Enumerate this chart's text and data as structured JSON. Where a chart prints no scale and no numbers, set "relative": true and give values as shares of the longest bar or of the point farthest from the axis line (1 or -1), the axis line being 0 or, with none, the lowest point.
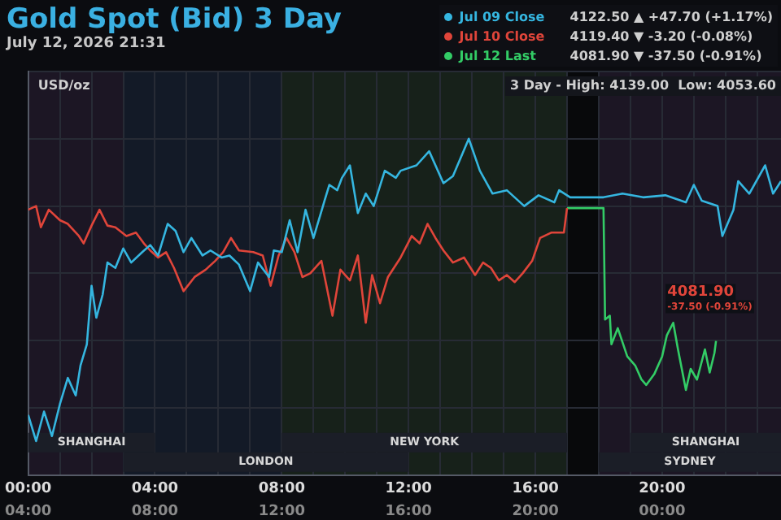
{
  "chart_data": {
    "type": "line",
    "title": "Gold Spot (Bid) 3 Day",
    "subtitle": "July 12, 2026 21:31",
    "ylabel": "USD/oz",
    "legend": "top right",
    "grid": true,
    "tick_labels": "x",
    "relative": true,
    "xlim": [
      0,
      23.75
    ],
    "xticks": [
      {
        "value": 0,
        "label": "00:00"
      },
      {
        "value": 1,
        "label": null
      },
      {
        "value": 2,
        "label": null
      },
      {
        "value": 3,
        "label": null
      },
      {
        "value": 4,
        "label": "04:00"
      },
      {
        "value": 5,
        "label": null
      },
      {
        "value": 6,
        "label": null
      },
      {
        "value": 7,
        "label": null
      },
      {
        "value": 8,
        "label": "08:00"
      },
      {
        "value": 9,
        "label": null
      },
      {
        "value": 10,
        "label": null
      },
      {
        "value": 11,
        "label": null
      },
      {
        "value": 12,
        "label": "12:00"
      },
      {
        "value": 13,
        "label": null
      },
      {
        "value": 14,
        "label": null
      },
      {
        "value": 15,
        "label": null
      },
      {
        "value": 16,
        "label": "16:00"
      },
      {
        "value": 17,
        "label": null
      },
      {
        "value": 18,
        "label": null
      },
      {
        "value": 19,
        "label": null
      },
      {
        "value": 20,
        "label": "20:00"
      },
      {
        "value": 21,
        "label": null
      },
      {
        "value": 22,
        "label": null
      },
      {
        "value": 23,
        "label": null
      }
    ],
    "x2lim": [
      4,
      27.75
    ],
    "x2ticks": [
      {
        "value": 4,
        "label": "04:00"
      },
      {
        "value": 8,
        "label": "08:00"
      },
      {
        "value": 12,
        "label": "12:00"
      },
      {
        "value": 16,
        "label": "16:00"
      },
      {
        "value": 20,
        "label": "20:00"
      },
      {
        "value": 24,
        "label": "00:00"
      }
    ],
    "series": [
      {
        "name": "Jul 09 Close",
        "color": "#35b6e0",
        "x": [
          0,
          0.25,
          0.5,
          0.75,
          1.0,
          1.25,
          1.5,
          1.65,
          1.85,
          2.0,
          2.15,
          2.35,
          2.5,
          2.75,
          3.0,
          3.25,
          3.6,
          3.85,
          4.1,
          4.4,
          4.65,
          4.9,
          5.15,
          5.5,
          5.75,
          6.1,
          6.35,
          6.65,
          7.0,
          7.25,
          7.6,
          7.75,
          8.0,
          8.25,
          8.5,
          8.75,
          9.0,
          9.35,
          9.5,
          9.75,
          9.9,
          10.15,
          10.4,
          10.65,
          10.9,
          11.25,
          11.6,
          11.75,
          12.25,
          12.65,
          13.1,
          13.4,
          13.9,
          14.25,
          14.65,
          15.1,
          15.65,
          16.1,
          16.6,
          16.75,
          17.1,
          18.15,
          18.75,
          19.4,
          20.1,
          20.75,
          21.0,
          21.25,
          21.75,
          21.9,
          22.25,
          22.4,
          22.75,
          23.25,
          23.5,
          23.75
        ],
        "values": [
          0.179,
          0.101,
          0.189,
          0.116,
          0.211,
          0.289,
          0.237,
          0.326,
          0.389,
          0.563,
          0.468,
          0.537,
          0.632,
          0.616,
          0.674,
          0.632,
          0.663,
          0.684,
          0.653,
          0.747,
          0.726,
          0.663,
          0.705,
          0.653,
          0.668,
          0.647,
          0.653,
          0.626,
          0.547,
          0.632,
          0.589,
          0.668,
          0.663,
          0.758,
          0.663,
          0.789,
          0.705,
          0.816,
          0.863,
          0.847,
          0.884,
          0.921,
          0.779,
          0.837,
          0.8,
          0.905,
          0.884,
          0.905,
          0.921,
          0.963,
          0.868,
          0.889,
          1,
          0.905,
          0.837,
          0.847,
          0.8,
          0.832,
          0.811,
          0.847,
          0.826,
          0.826,
          0.837,
          0.826,
          0.832,
          0.811,
          0.863,
          0.816,
          0.8,
          0.711,
          0.789,
          0.874,
          0.837,
          0.921,
          0.837,
          0.874
        ]
      },
      {
        "name": "Jul 10 Close",
        "color": "#e0453a",
        "x": [
          0,
          0.25,
          0.4,
          0.65,
          1.0,
          1.25,
          1.6,
          1.75,
          2.0,
          2.25,
          2.5,
          2.75,
          3.1,
          3.4,
          3.65,
          3.85,
          4.1,
          4.35,
          4.6,
          4.9,
          5.25,
          5.6,
          5.9,
          6.15,
          6.4,
          6.65,
          7.1,
          7.4,
          7.65,
          7.9,
          8.15,
          8.4,
          8.65,
          8.9,
          9.25,
          9.6,
          9.85,
          10.15,
          10.4,
          10.65,
          10.85,
          11.1,
          11.35,
          11.75,
          12.1,
          12.35,
          12.6,
          12.85,
          13.1,
          13.4,
          13.75,
          14.1,
          14.35,
          14.6,
          14.85,
          15.1,
          15.35,
          15.6,
          15.9,
          16.15,
          16.5,
          16.9,
          17.0
        ],
        "values": [
          0.789,
          0.8,
          0.737,
          0.789,
          0.758,
          0.747,
          0.711,
          0.689,
          0.742,
          0.789,
          0.742,
          0.737,
          0.711,
          0.721,
          0.689,
          0.668,
          0.647,
          0.663,
          0.616,
          0.547,
          0.589,
          0.611,
          0.637,
          0.663,
          0.705,
          0.668,
          0.663,
          0.653,
          0.563,
          0.653,
          0.705,
          0.663,
          0.589,
          0.6,
          0.637,
          0.474,
          0.611,
          0.579,
          0.653,
          0.453,
          0.595,
          0.511,
          0.589,
          0.647,
          0.711,
          0.689,
          0.747,
          0.705,
          0.668,
          0.632,
          0.647,
          0.595,
          0.632,
          0.616,
          0.579,
          0.595,
          0.574,
          0.6,
          0.637,
          0.705,
          0.721,
          0.721,
          0.794
        ]
      },
      {
        "name": "Jul 12 Last",
        "color": "#33cc66",
        "x": [
          17.0,
          18.15,
          18.2,
          18.35,
          18.4,
          18.6,
          18.9,
          19.15,
          19.35,
          19.5,
          19.75,
          20.0,
          20.15,
          20.35,
          20.5,
          20.75,
          20.9,
          21.1,
          21.35,
          21.5,
          21.65,
          21.7
        ],
        "values": [
          0.794,
          0.794,
          0.463,
          0.474,
          0.389,
          0.437,
          0.353,
          0.326,
          0.284,
          0.268,
          0.3,
          0.353,
          0.416,
          0.453,
          0.374,
          0.253,
          0.316,
          0.284,
          0.374,
          0.305,
          0.363,
          0.399
        ]
      }
    ],
    "bands": [
      {
        "axis": "x",
        "from": 0,
        "to": 3,
        "color": "#1c1624"
      },
      {
        "axis": "x",
        "from": 3,
        "to": 8,
        "color": "#131a27"
      },
      {
        "axis": "x",
        "from": 8,
        "to": 17,
        "color": "#17211a"
      },
      {
        "axis": "x",
        "from": 17,
        "to": 18,
        "color": "#08090b"
      },
      {
        "axis": "x",
        "from": 18,
        "to": 23.75,
        "color": "#1c1624"
      },
      {
        "axis": "x",
        "from": 0,
        "to": 4,
        "label": "SHANGHAI",
        "color": "#1b1e27"
      },
      {
        "axis": "x",
        "from": 3,
        "to": 12,
        "label": "LONDON",
        "color": "#1b1e27"
      },
      {
        "axis": "x",
        "from": 8,
        "to": 17,
        "label": "NEW YORK",
        "color": "#1b1e27"
      },
      {
        "axis": "x",
        "from": 19,
        "to": 23.75,
        "label": "SHANGHAI",
        "color": "#1b1e27"
      },
      {
        "axis": "x",
        "from": 18,
        "to": 23.75,
        "label": "SYDNEY",
        "color": "#1b1e27"
      }
    ],
    "annotations": [
      "4122.50 ▲ +47.70 (+1.17%)",
      "4119.40 ▼ -3.20 (-0.08%)",
      "4081.90 ▼ -37.50 (-0.91%)",
      "3 Day - High: 4139.00  Low: 4053.60",
      {
        "text": "4081.90\n-37.50 (-0.91%)",
        "x": 21.7,
        "y": 0.399
      }
    ]
  }
}
